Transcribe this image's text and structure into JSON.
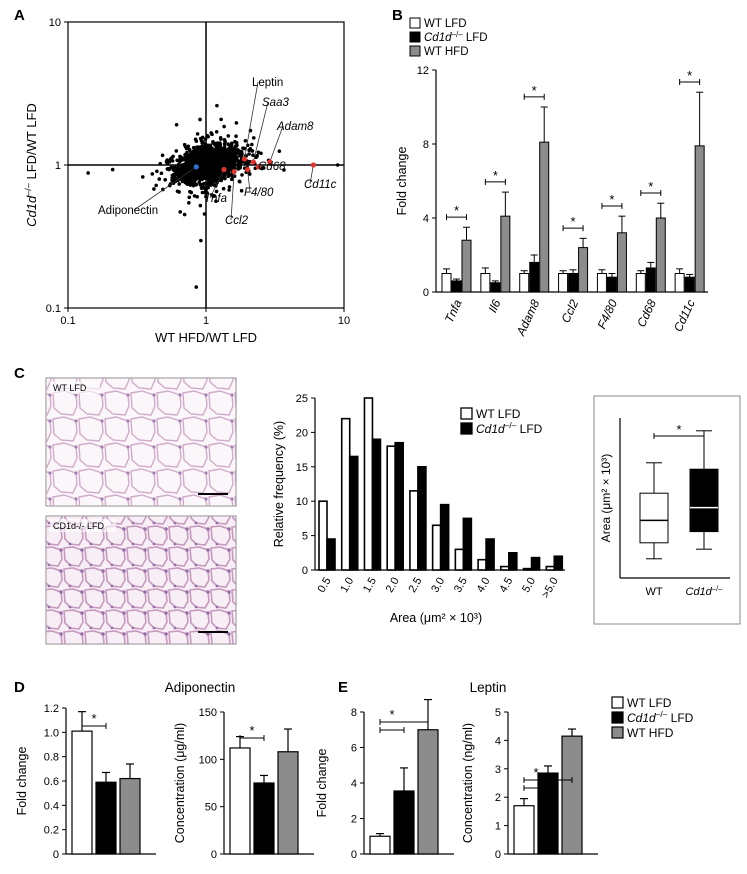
{
  "panels": {
    "A": "A",
    "B": "B",
    "C": "C",
    "D": "D",
    "E": "E"
  },
  "chart_data": [
    {
      "id": "A",
      "type": "scatter",
      "xscale": "log",
      "yscale": "log",
      "xlim": [
        0.1,
        10
      ],
      "ylim": [
        0.1,
        10
      ],
      "xticks": [
        "0.1",
        "1",
        "10"
      ],
      "yticks": [
        "0.1",
        "1",
        "10"
      ],
      "xlabel": "WT HFD/WT LFD",
      "ylabel_prefix": "Cd1d",
      "ylabel_sup": "–/–",
      "ylabel_suffix": " LFD/WT LFD",
      "highlighted_points": [
        {
          "label": "Leptin",
          "x": 1.9,
          "y": 1.1,
          "italic": false
        },
        {
          "label": "Saa3",
          "x": 2.2,
          "y": 1.05,
          "italic": true
        },
        {
          "label": "Adam8",
          "x": 2.9,
          "y": 1.05,
          "italic": true
        },
        {
          "label": "Cd11c",
          "x": 6.0,
          "y": 1.0,
          "italic": true
        },
        {
          "label": "Cd68",
          "x": 2.4,
          "y": 0.97,
          "italic": true
        },
        {
          "label": "F4/80",
          "x": 2.0,
          "y": 0.93,
          "italic": true
        },
        {
          "label": "Ccl2",
          "x": 1.6,
          "y": 0.9,
          "italic": true
        },
        {
          "label": "Tnfa",
          "x": 1.35,
          "y": 0.93,
          "italic": true
        },
        {
          "label": "Adiponectin",
          "x": 0.85,
          "y": 0.97,
          "italic": false
        }
      ]
    },
    {
      "id": "B",
      "type": "bar",
      "ylabel": "Fold change",
      "ylim": [
        0,
        12
      ],
      "yticks": [
        "0",
        "4",
        "8",
        "12"
      ],
      "categories": [
        "Tnfa",
        "Il6",
        "Adam8",
        "Ccl2",
        "F4/80",
        "Cd68",
        "Cd11c"
      ],
      "series": [
        {
          "name": "WT LFD",
          "color": "#ffffff",
          "values": [
            1.0,
            1.0,
            1.0,
            1.0,
            1.0,
            1.0,
            1.0
          ],
          "err": [
            0.25,
            0.3,
            0.15,
            0.15,
            0.2,
            0.15,
            0.25
          ]
        },
        {
          "name": "Cd1d–/– LFD",
          "color": "#000000",
          "values": [
            0.6,
            0.5,
            1.6,
            1.0,
            0.8,
            1.3,
            0.8
          ],
          "err": [
            0.1,
            0.1,
            0.4,
            0.2,
            0.2,
            0.3,
            0.15
          ]
        },
        {
          "name": "WT HFD",
          "color": "#8c8c8c",
          "values": [
            2.8,
            4.1,
            8.1,
            2.4,
            3.2,
            4.0,
            7.9
          ],
          "err": [
            0.7,
            1.3,
            1.9,
            0.5,
            0.9,
            0.8,
            2.9
          ]
        }
      ],
      "legend": [
        {
          "pre": "WT LFD",
          "sup": "",
          "post": ""
        },
        {
          "pre": "Cd1d",
          "sup": "–/–",
          "post": " LFD"
        },
        {
          "pre": "WT HFD",
          "sup": "",
          "post": ""
        }
      ],
      "sig": "*"
    },
    {
      "id": "C-hist",
      "type": "bar",
      "ylabel": "Relative frequency (%)",
      "xlabel": "Area (μm² × 10³)",
      "ylim": [
        0,
        25
      ],
      "yticks": [
        "0",
        "5",
        "10",
        "15",
        "20",
        "25"
      ],
      "categories": [
        "0.5",
        "1.0",
        "1.5",
        "2.0",
        "2.5",
        "3.0",
        "3.5",
        "4.0",
        "4.5",
        "5.0",
        ">5.0"
      ],
      "series": [
        {
          "name": "WT LFD",
          "color": "#ffffff",
          "values": [
            10,
            22,
            25,
            18,
            11.5,
            6.5,
            3,
            1.5,
            0.5,
            0.2,
            0.5
          ]
        },
        {
          "name": "Cd1d–/– LFD",
          "color": "#000000",
          "values": [
            4.5,
            16.5,
            19,
            18.5,
            15,
            9.5,
            7.5,
            4.5,
            2.5,
            1.8,
            2
          ]
        }
      ],
      "legend": [
        {
          "pre": "WT LFD",
          "sup": "",
          "post": ""
        },
        {
          "pre": "Cd1d",
          "sup": "–/–",
          "post": " LFD"
        }
      ]
    },
    {
      "id": "C-box",
      "type": "box",
      "ylabel": "Area (μm² × 10³)",
      "categories": [
        "WT",
        "Cd1d–/–"
      ],
      "cat_labels": [
        {
          "pre": "WT",
          "sup": "",
          "italic": false
        },
        {
          "pre": "Cd1d",
          "sup": "–/–",
          "italic": true
        }
      ],
      "boxes": [
        {
          "min": 0.6,
          "q1": 1.1,
          "median": 1.8,
          "q3": 2.65,
          "max": 3.6,
          "fill": "#ffffff"
        },
        {
          "min": 0.9,
          "q1": 1.45,
          "median": 2.2,
          "q3": 3.4,
          "max": 4.6,
          "fill": "#000000"
        }
      ],
      "ylim": [
        0,
        5
      ],
      "sig": "*"
    },
    {
      "id": "D-fold",
      "type": "bar",
      "group_title": "Adiponectin",
      "ylabel": "Fold change",
      "ylim": [
        0,
        1.2
      ],
      "yticks": [
        "0",
        "0.2",
        "0.4",
        "0.6",
        "0.8",
        "1.0",
        "1.2"
      ],
      "values": [
        1.01,
        0.59,
        0.62
      ],
      "err": [
        0.16,
        0.08,
        0.12
      ],
      "colors": [
        "#ffffff",
        "#000000",
        "#8c8c8c"
      ],
      "sig": "*"
    },
    {
      "id": "D-conc",
      "type": "bar",
      "ylabel": "Concentration (μg/ml)",
      "ylim": [
        0,
        150
      ],
      "yticks": [
        "0",
        "50",
        "100",
        "150"
      ],
      "values": [
        112,
        75,
        108
      ],
      "err": [
        12,
        8,
        24
      ],
      "colors": [
        "#ffffff",
        "#000000",
        "#8c8c8c"
      ],
      "sig": "*"
    },
    {
      "id": "E-fold",
      "type": "bar",
      "group_title": "Leptin",
      "ylabel": "Fold change",
      "ylim": [
        0,
        8
      ],
      "yticks": [
        "0",
        "2",
        "4",
        "6",
        "8"
      ],
      "values": [
        1.0,
        3.55,
        7.0
      ],
      "err": [
        0.15,
        1.3,
        1.7
      ],
      "colors": [
        "#ffffff",
        "#000000",
        "#8c8c8c"
      ],
      "sig": "*"
    },
    {
      "id": "E-conc",
      "type": "bar",
      "ylabel": "Concentration (ng/ml)",
      "ylim": [
        0,
        5
      ],
      "yticks": [
        "0",
        "1",
        "2",
        "3",
        "4",
        "5"
      ],
      "values": [
        1.7,
        2.85,
        4.15
      ],
      "err": [
        0.25,
        0.25,
        0.25
      ],
      "colors": [
        "#ffffff",
        "#000000",
        "#8c8c8c"
      ],
      "sig": "*",
      "legend": [
        {
          "pre": "WT LFD",
          "sup": "",
          "post": ""
        },
        {
          "pre": "Cd1d",
          "sup": "–/–",
          "post": " LFD"
        },
        {
          "pre": "WT HFD",
          "sup": "",
          "post": ""
        }
      ]
    }
  ],
  "micrographs": [
    {
      "label": "WT LFD"
    },
    {
      "label": "CD1d-/- LFD"
    }
  ],
  "colors": {
    "wt_lfd": "#ffffff",
    "cd1d_lfd": "#000000",
    "wt_hfd": "#8c8c8c",
    "highlight": "#e0342d",
    "adiponectin_dot": "#2f6fd1"
  }
}
